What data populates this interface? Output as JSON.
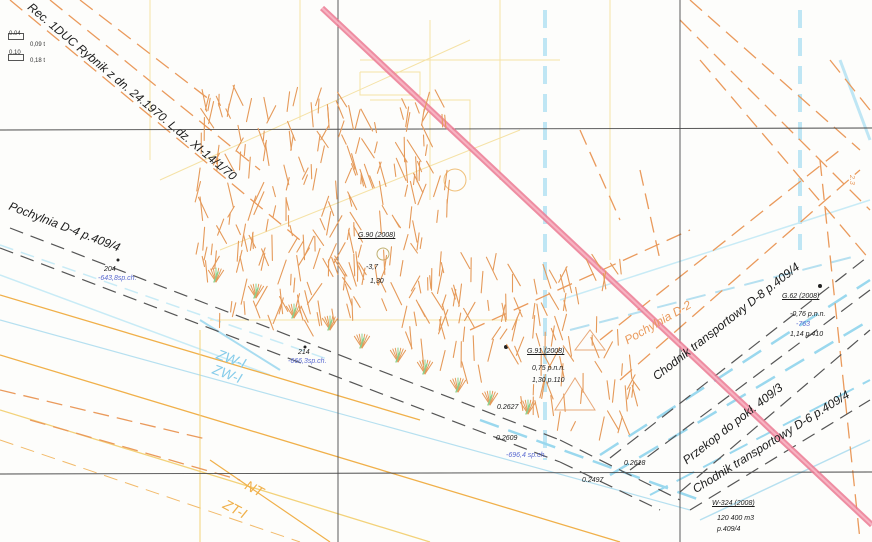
{
  "legend": [
    {
      "code": "0.04",
      "value": "0,09 t"
    },
    {
      "code": "0.10",
      "value": "0,18 t"
    }
  ],
  "labels": {
    "header_text": "Rec. 1DUC Rybnik z dn. 24.1970. L.dz. XI-14/1/70",
    "pochylnia": "Pochylnia D-4 p.409/4",
    "pt204": "204",
    "pt204_sub": "-643,8sp.ch.",
    "pt214": "214",
    "pt214_sub": "-666,3sp.ch.",
    "g90_title": "G.90 (2008)",
    "g90_line1": "-3,7",
    "g90_line2": "1,30",
    "g91_title": "G.91 (2008)",
    "g91_line1": "0,75 p.n.n.",
    "g91_line2": "1,30 p.110",
    "g62_title": "G.62 (2008)",
    "g62_line1": "-0,76 p.n.n.",
    "g62_line2": "-763",
    "g62_line3": "1,14 p.410",
    "p2627": "0.2627",
    "p2609": "0.2609",
    "p2609_sub": "-696,4 sp.ch.",
    "p2618": "0.2618",
    "p2497": "0.2497",
    "w324_title": "W-324 (2008)",
    "w324_line1": "120 400 m3",
    "w324_line2": "p.409/4",
    "chodnik_d8": "Chodnik transportowy D-8 p.409/4",
    "przekop": "Przekop do pokł. 409/3",
    "chodnik_d6": "Chodnik transportowy D-6 p.409/4",
    "pochylnia_d2": "Pochylnia D-2",
    "zw1": "ZW-I",
    "zw1b": "ZW-I",
    "nt": "NT",
    "zt1": "ZT-I",
    "right_edge": "2.3"
  },
  "colors": {
    "hatch_orange": "#e59a5a",
    "hatch_green": "#8cd08c",
    "fault_pink": "#ec7a93",
    "lightblue": "#9ad8ee",
    "orange_line": "#f0b04a",
    "yellow_line": "#f3d27a",
    "grid": "#4a4a4a",
    "label_blue": "#5a6ad0"
  }
}
